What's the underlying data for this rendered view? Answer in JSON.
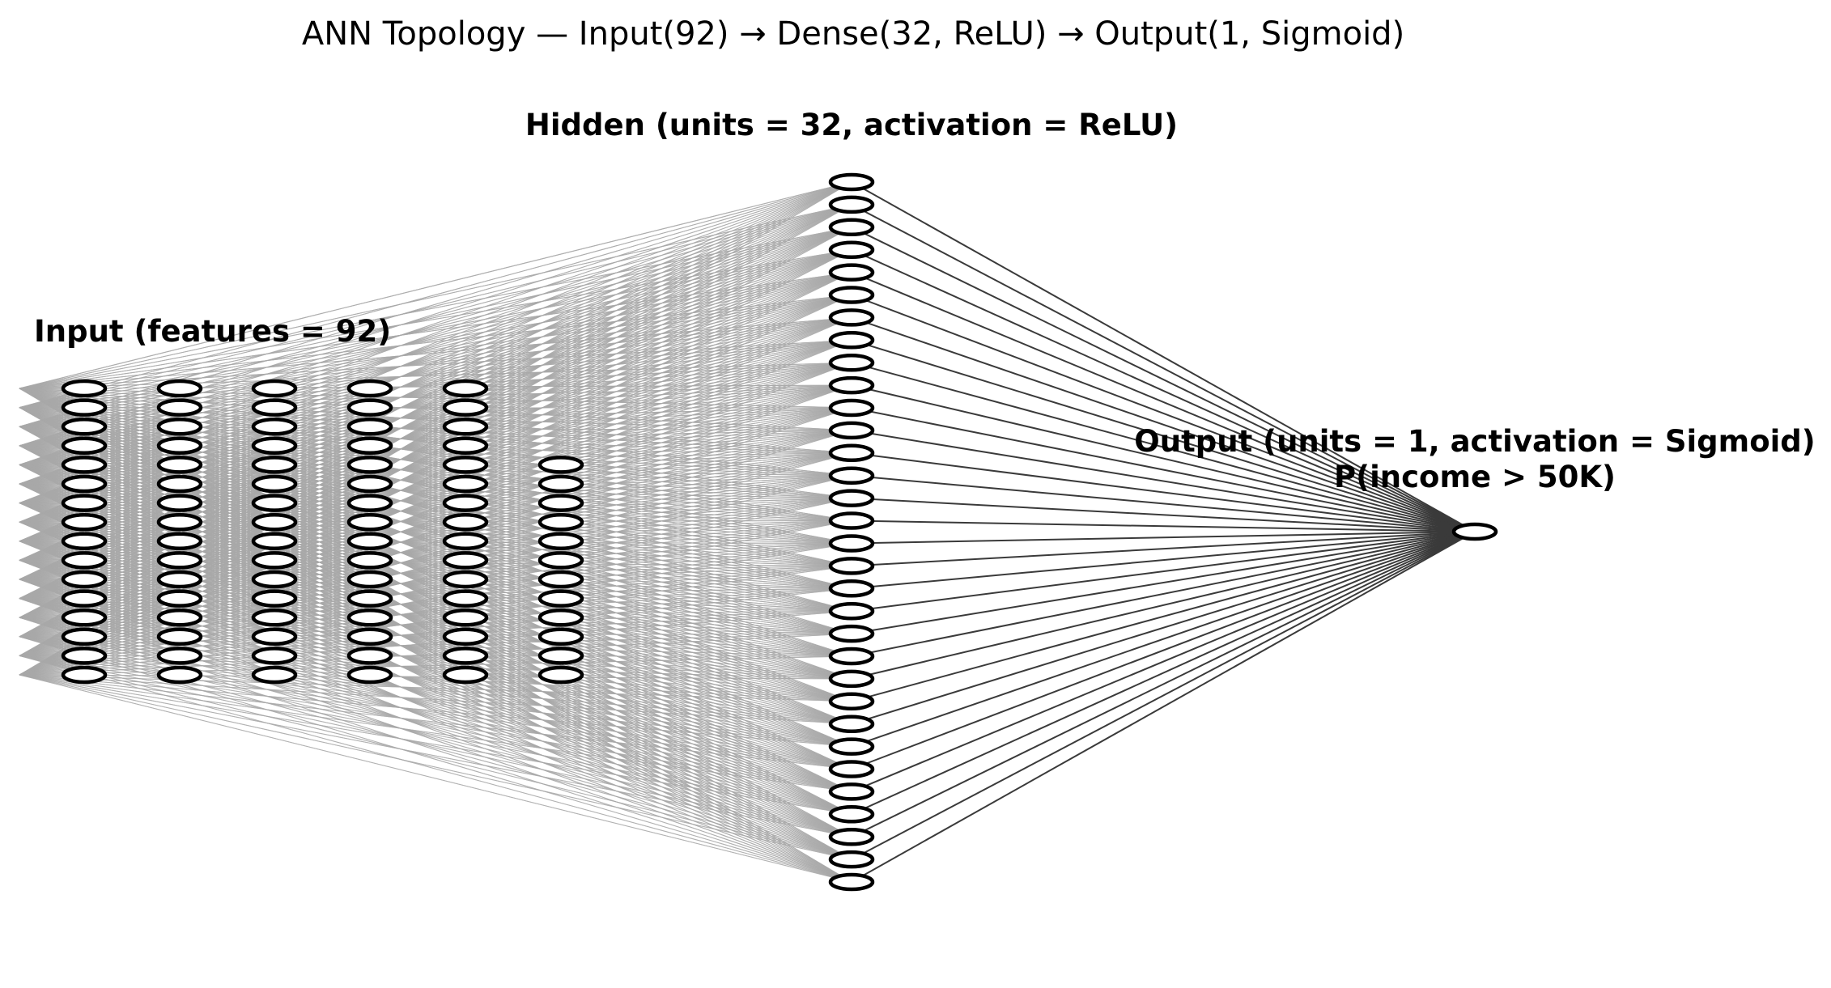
{
  "title": "ANN Topology — Input(92) → Dense(32, ReLU) → Output(1, Sigmoid)",
  "layers": {
    "input": {
      "label": "Input  (features = 92)",
      "units": 92
    },
    "hidden": {
      "label": "Hidden  (units = 32, activation = ReLU)",
      "units": 32
    },
    "output": {
      "label_line1": "Output  (units = 1, activation = Sigmoid)",
      "label_line2": "P(income > 50K)",
      "units": 1
    }
  },
  "colors": {
    "node_stroke": "#000000",
    "input_edges": "#a8a8a8",
    "output_edges": "#3a3a3a"
  }
}
